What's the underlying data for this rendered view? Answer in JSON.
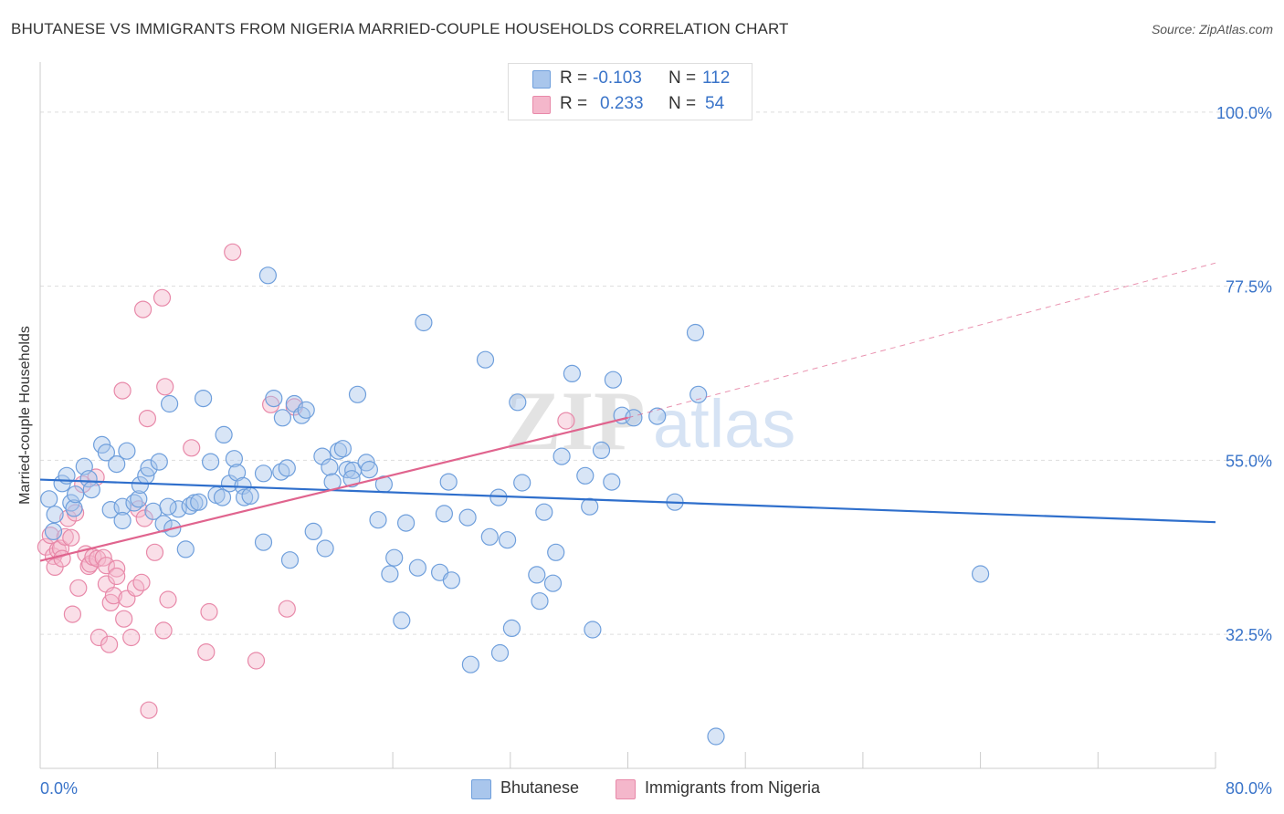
{
  "title": "BHUTANESE VS IMMIGRANTS FROM NIGERIA MARRIED-COUPLE HOUSEHOLDS CORRELATION CHART",
  "source": "Source: ZipAtlas.com",
  "watermark": {
    "zip": "ZIP",
    "atlas": "atlas"
  },
  "legend": {
    "rows": [
      {
        "r_label": "R =",
        "r_value": "-0.103",
        "n_label": "N =",
        "n_value": "112"
      },
      {
        "r_label": "R =",
        "r_value": "0.233",
        "n_label": "N =",
        "n_value": "54"
      }
    ]
  },
  "colors": {
    "blue_fill": "#a9c6ec",
    "blue_stroke": "#6f9fdc",
    "blue_line": "#2f6fcc",
    "pink_fill": "#f4b7cb",
    "pink_stroke": "#e889a9",
    "pink_line": "#e0648e",
    "grid": "#dddddd",
    "axis_label": "#3a74c9"
  },
  "chart_data": {
    "type": "scatter",
    "title": "BHUTANESE VS IMMIGRANTS FROM NIGERIA MARRIED-COUPLE HOUSEHOLDS CORRELATION CHART",
    "xlabel": "",
    "ylabel": "Married-couple Households",
    "xlim": [
      0,
      80
    ],
    "ylim": [
      15,
      102
    ],
    "x_tick_labels": [
      "0.0%",
      "80.0%"
    ],
    "y_ticks": [
      32.5,
      55.0,
      77.5,
      100.0
    ],
    "y_tick_labels": [
      "32.5%",
      "55.0%",
      "77.5%",
      "100.0%"
    ],
    "grid": true,
    "legend_position": "top-center",
    "series": [
      {
        "name": "Bhutanese",
        "color": "#a9c6ec",
        "trend": {
          "x": [
            0,
            80
          ],
          "y": [
            52.5,
            47.0
          ],
          "dashed_extension": false
        },
        "points": [
          [
            0.9,
            45.8
          ],
          [
            0.6,
            50.0
          ],
          [
            1.0,
            48.0
          ],
          [
            1.5,
            52.0
          ],
          [
            1.8,
            53.0
          ],
          [
            2.1,
            49.5
          ],
          [
            2.3,
            48.8
          ],
          [
            2.4,
            50.6
          ],
          [
            3.0,
            54.2
          ],
          [
            3.3,
            52.6
          ],
          [
            3.5,
            51.2
          ],
          [
            4.2,
            57.0
          ],
          [
            4.5,
            56.0
          ],
          [
            4.8,
            48.6
          ],
          [
            5.2,
            54.5
          ],
          [
            5.6,
            49.0
          ],
          [
            5.6,
            47.2
          ],
          [
            5.9,
            56.2
          ],
          [
            6.4,
            49.5
          ],
          [
            6.7,
            50.0
          ],
          [
            6.8,
            51.8
          ],
          [
            7.2,
            53.0
          ],
          [
            7.4,
            54.0
          ],
          [
            7.7,
            48.4
          ],
          [
            8.1,
            54.8
          ],
          [
            8.4,
            46.8
          ],
          [
            8.8,
            62.3
          ],
          [
            9.0,
            46.2
          ],
          [
            9.4,
            48.7
          ],
          [
            9.9,
            43.5
          ],
          [
            10.2,
            49.1
          ],
          [
            10.5,
            49.5
          ],
          [
            10.8,
            49.6
          ],
          [
            11.1,
            63.0
          ],
          [
            11.6,
            54.8
          ],
          [
            12.0,
            50.5
          ],
          [
            12.4,
            50.2
          ],
          [
            12.5,
            58.3
          ],
          [
            12.9,
            52.0
          ],
          [
            13.2,
            55.2
          ],
          [
            13.4,
            53.4
          ],
          [
            13.8,
            51.7
          ],
          [
            13.9,
            50.2
          ],
          [
            14.3,
            50.4
          ],
          [
            15.2,
            53.3
          ],
          [
            15.2,
            44.4
          ],
          [
            15.5,
            78.9
          ],
          [
            15.9,
            63.0
          ],
          [
            16.4,
            53.5
          ],
          [
            16.5,
            60.5
          ],
          [
            16.8,
            54.0
          ],
          [
            17.0,
            42.1
          ],
          [
            17.3,
            62.3
          ],
          [
            17.8,
            60.8
          ],
          [
            18.1,
            61.5
          ],
          [
            18.6,
            45.8
          ],
          [
            19.2,
            55.5
          ],
          [
            19.4,
            43.6
          ],
          [
            19.7,
            54.1
          ],
          [
            19.9,
            52.2
          ],
          [
            20.3,
            56.2
          ],
          [
            20.6,
            56.5
          ],
          [
            20.9,
            53.8
          ],
          [
            21.3,
            53.7
          ],
          [
            21.6,
            63.5
          ],
          [
            22.2,
            54.7
          ],
          [
            22.4,
            53.8
          ],
          [
            23.0,
            47.3
          ],
          [
            23.4,
            51.9
          ],
          [
            23.8,
            40.3
          ],
          [
            24.1,
            42.4
          ],
          [
            24.6,
            34.3
          ],
          [
            24.9,
            46.9
          ],
          [
            25.7,
            41.1
          ],
          [
            26.1,
            72.8
          ],
          [
            27.2,
            40.5
          ],
          [
            27.5,
            48.1
          ],
          [
            27.8,
            52.2
          ],
          [
            28.0,
            39.5
          ],
          [
            29.1,
            47.6
          ],
          [
            29.3,
            28.6
          ],
          [
            30.3,
            68.0
          ],
          [
            30.6,
            45.1
          ],
          [
            31.2,
            50.2
          ],
          [
            31.8,
            44.7
          ],
          [
            32.1,
            33.3
          ],
          [
            31.3,
            30.1
          ],
          [
            32.5,
            62.5
          ],
          [
            32.8,
            52.1
          ],
          [
            33.8,
            40.2
          ],
          [
            34.0,
            36.8
          ],
          [
            34.3,
            48.3
          ],
          [
            35.1,
            43.1
          ],
          [
            34.9,
            39.1
          ],
          [
            35.5,
            55.5
          ],
          [
            36.2,
            66.2
          ],
          [
            37.1,
            53.0
          ],
          [
            37.4,
            49.0
          ],
          [
            37.6,
            33.1
          ],
          [
            38.2,
            56.3
          ],
          [
            38.9,
            52.2
          ],
          [
            39.0,
            65.4
          ],
          [
            39.6,
            60.8
          ],
          [
            40.4,
            60.5
          ],
          [
            42.0,
            60.7
          ],
          [
            43.2,
            49.6
          ],
          [
            44.6,
            71.5
          ],
          [
            44.8,
            63.5
          ],
          [
            46.0,
            19.3
          ],
          [
            64.0,
            40.3
          ],
          [
            21.2,
            52.6
          ],
          [
            8.7,
            49.0
          ]
        ]
      },
      {
        "name": "Immigrants from Nigeria",
        "color": "#f4b7cb",
        "trend": {
          "x": [
            0,
            40
          ],
          "y": [
            42.0,
            60.5
          ],
          "dashed_extension": true,
          "extension_to": [
            80,
            80.5
          ]
        },
        "points": [
          [
            0.4,
            43.8
          ],
          [
            0.7,
            45.3
          ],
          [
            0.9,
            42.6
          ],
          [
            1.0,
            41.2
          ],
          [
            1.2,
            43.4
          ],
          [
            1.4,
            43.6
          ],
          [
            1.5,
            42.3
          ],
          [
            1.7,
            45.1
          ],
          [
            1.9,
            47.5
          ],
          [
            2.1,
            45.0
          ],
          [
            2.2,
            35.1
          ],
          [
            2.4,
            48.2
          ],
          [
            2.6,
            38.5
          ],
          [
            2.9,
            51.9
          ],
          [
            3.1,
            42.9
          ],
          [
            3.3,
            41.3
          ],
          [
            3.4,
            41.6
          ],
          [
            3.6,
            42.5
          ],
          [
            3.8,
            52.8
          ],
          [
            3.9,
            42.3
          ],
          [
            4.0,
            32.1
          ],
          [
            4.3,
            42.4
          ],
          [
            4.5,
            41.4
          ],
          [
            4.5,
            39.0
          ],
          [
            4.7,
            31.2
          ],
          [
            4.8,
            36.6
          ],
          [
            5.0,
            37.5
          ],
          [
            5.2,
            41.0
          ],
          [
            5.2,
            40.0
          ],
          [
            5.6,
            64.0
          ],
          [
            5.7,
            34.5
          ],
          [
            5.9,
            37.1
          ],
          [
            6.2,
            32.1
          ],
          [
            6.5,
            38.5
          ],
          [
            6.7,
            48.7
          ],
          [
            6.9,
            39.2
          ],
          [
            7.0,
            74.5
          ],
          [
            7.1,
            47.5
          ],
          [
            7.3,
            60.4
          ],
          [
            7.4,
            22.7
          ],
          [
            7.8,
            43.1
          ],
          [
            8.3,
            76.0
          ],
          [
            8.4,
            33.0
          ],
          [
            8.5,
            64.5
          ],
          [
            8.7,
            37.0
          ],
          [
            10.3,
            56.6
          ],
          [
            11.3,
            30.2
          ],
          [
            11.5,
            35.4
          ],
          [
            13.1,
            81.9
          ],
          [
            14.7,
            29.1
          ],
          [
            15.7,
            62.2
          ],
          [
            16.8,
            35.8
          ],
          [
            17.3,
            61.9
          ],
          [
            35.8,
            60.1
          ]
        ]
      }
    ]
  }
}
